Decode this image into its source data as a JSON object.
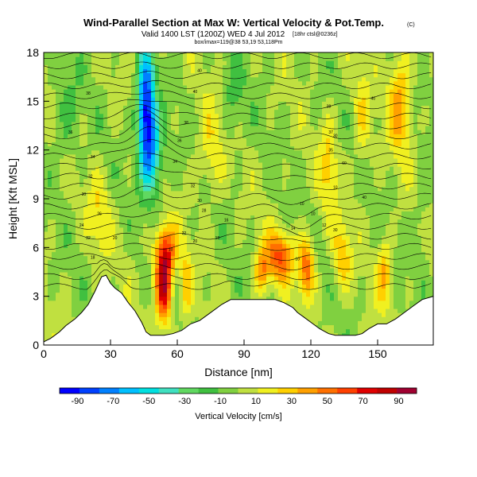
{
  "chart_data": {
    "type": "heatmap",
    "title": "Wind-Parallel Section at Max W: Vertical Velocity & Pot.Temp.",
    "title_mark": "(C)",
    "subtitle": "Valid 1400 LST (1200Z) WED 4 Jul 2012",
    "subtitle_small": "(1200Z)",
    "subtitle_extra": "[18hr ctsl@0236z]",
    "caption_small": "box/imax=119@38 53,19 53,118Pm",
    "xlabel": "Distance [nm]",
    "ylabel": "Height [Kft MSL]",
    "xlim": [
      0,
      175
    ],
    "ylim": [
      0,
      18
    ],
    "x_ticks": [
      0,
      30,
      60,
      90,
      120,
      150
    ],
    "y_ticks": [
      0,
      3,
      6,
      9,
      12,
      15,
      18
    ],
    "colorbar": {
      "label": "Vertical Velocity [cm/s]",
      "range": [
        -100,
        100
      ],
      "tick_values": [
        -90,
        -70,
        -50,
        -30,
        -10,
        10,
        30,
        50,
        70,
        90
      ],
      "colors": [
        "#0000ff",
        "#0040ff",
        "#0080ff",
        "#00c0ff",
        "#00e0e0",
        "#40e0c0",
        "#60d860",
        "#40c040",
        "#80d040",
        "#c0e040",
        "#f0f020",
        "#ffd000",
        "#ffa000",
        "#ff7000",
        "#ff4000",
        "#e00000",
        "#c00000",
        "#a00030"
      ]
    },
    "terrain_profile": {
      "x": [
        0,
        3,
        7,
        10,
        14,
        17,
        20,
        23,
        26,
        28,
        30,
        32,
        35,
        38,
        41,
        44,
        46,
        48,
        50,
        54,
        58,
        62,
        64,
        66,
        70,
        74,
        78,
        80,
        84,
        88,
        92,
        96,
        100,
        104,
        108,
        112,
        114,
        117,
        120,
        124,
        128,
        131,
        134,
        137,
        140,
        143,
        146,
        150,
        154,
        158,
        162,
        166,
        170,
        175
      ],
      "height": [
        0.2,
        0.4,
        0.8,
        1.2,
        1.6,
        2.0,
        2.5,
        3.3,
        4.2,
        4.3,
        3.8,
        3.5,
        3.2,
        2.6,
        2.1,
        1.4,
        0.8,
        0.6,
        0.6,
        0.6,
        0.7,
        0.9,
        1.1,
        1.3,
        1.5,
        1.9,
        2.3,
        2.5,
        2.8,
        2.8,
        2.8,
        2.8,
        2.8,
        2.8,
        2.6,
        2.3,
        2.0,
        1.7,
        1.4,
        1.0,
        0.7,
        0.6,
        0.6,
        0.6,
        0.6,
        0.7,
        1.0,
        1.3,
        1.3,
        1.6,
        2.0,
        2.4,
        2.8,
        3.0
      ]
    },
    "w_features": [
      {
        "x": 46,
        "z": 14.5,
        "sx": 4,
        "sz": 3.5,
        "w": -95
      },
      {
        "x": 49,
        "z": 11.5,
        "sx": 5,
        "sz": 2.5,
        "w": -45
      },
      {
        "x": 54,
        "z": 3.8,
        "sx": 3.5,
        "sz": 2.2,
        "w": 95
      },
      {
        "x": 55,
        "z": 6.0,
        "sx": 6,
        "sz": 1.5,
        "w": 40
      },
      {
        "x": 64,
        "z": 3.5,
        "sx": 2.5,
        "sz": 2.0,
        "w": 30
      },
      {
        "x": 98,
        "z": 4.5,
        "sx": 3,
        "sz": 1.5,
        "w": 40
      },
      {
        "x": 106,
        "z": 5.5,
        "sx": 6,
        "sz": 1.5,
        "w": 55
      },
      {
        "x": 118,
        "z": 4.8,
        "sx": 3.5,
        "sz": 1.8,
        "w": 55
      },
      {
        "x": 134,
        "z": 5.5,
        "sx": 4,
        "sz": 2.0,
        "w": 30
      },
      {
        "x": 153,
        "z": 4.5,
        "sx": 3,
        "sz": 2.0,
        "w": 35
      },
      {
        "x": 160,
        "z": 15.0,
        "sx": 5,
        "sz": 3.0,
        "w": 40
      },
      {
        "x": 143,
        "z": 14.0,
        "sx": 4,
        "sz": 3.0,
        "w": 20
      },
      {
        "x": 10,
        "z": 14.0,
        "sx": 6,
        "sz": 3.0,
        "w": -15
      },
      {
        "x": 25,
        "z": 8.0,
        "sx": 5,
        "sz": 2.5,
        "w": 20
      },
      {
        "x": 75,
        "z": 12.0,
        "sx": 6,
        "sz": 3.0,
        "w": 20
      },
      {
        "x": 85,
        "z": 15.0,
        "sx": 5,
        "sz": 3.0,
        "w": -15
      },
      {
        "x": 128,
        "z": 11.0,
        "sx": 4,
        "sz": 3.0,
        "w": 25
      },
      {
        "x": 170,
        "z": 8.0,
        "sx": 4,
        "sz": 3.0,
        "w": -10
      }
    ],
    "theta_isentropes": {
      "count": 24,
      "labels": [
        {
          "x": 70,
          "z": 16.8,
          "text": "40"
        },
        {
          "x": 68,
          "z": 15.5,
          "text": "40"
        },
        {
          "x": 20,
          "z": 15.4,
          "text": "38"
        },
        {
          "x": 12,
          "z": 13.0,
          "text": "36"
        },
        {
          "x": 22,
          "z": 11.5,
          "text": "34"
        },
        {
          "x": 64,
          "z": 13.6,
          "text": "38"
        },
        {
          "x": 61,
          "z": 12.5,
          "text": "36"
        },
        {
          "x": 59,
          "z": 11.2,
          "text": "34"
        },
        {
          "x": 21,
          "z": 10.3,
          "text": "32"
        },
        {
          "x": 18,
          "z": 9.2,
          "text": "30"
        },
        {
          "x": 67,
          "z": 9.7,
          "text": "32"
        },
        {
          "x": 70,
          "z": 8.8,
          "text": "30"
        },
        {
          "x": 72,
          "z": 8.2,
          "text": "28"
        },
        {
          "x": 25,
          "z": 8.0,
          "text": "26"
        },
        {
          "x": 17,
          "z": 7.3,
          "text": "24"
        },
        {
          "x": 20,
          "z": 6.5,
          "text": "22"
        },
        {
          "x": 32,
          "z": 6.5,
          "text": "20"
        },
        {
          "x": 22,
          "z": 5.3,
          "text": "18"
        },
        {
          "x": 63,
          "z": 6.8,
          "text": "22"
        },
        {
          "x": 68,
          "z": 6.3,
          "text": "20"
        },
        {
          "x": 78,
          "z": 6.5,
          "text": "18"
        },
        {
          "x": 82,
          "z": 7.6,
          "text": "16"
        },
        {
          "x": 112,
          "z": 7.1,
          "text": "14"
        },
        {
          "x": 126,
          "z": 7.3,
          "text": "12"
        },
        {
          "x": 121,
          "z": 8.0,
          "text": "10"
        },
        {
          "x": 116,
          "z": 8.6,
          "text": "10"
        },
        {
          "x": 131,
          "z": 9.6,
          "text": "10"
        },
        {
          "x": 131,
          "z": 7.0,
          "text": "30"
        },
        {
          "x": 57,
          "z": 5.8,
          "text": "10"
        },
        {
          "x": 114,
          "z": 5.2,
          "text": "10"
        },
        {
          "x": 144,
          "z": 9.0,
          "text": "40"
        },
        {
          "x": 135,
          "z": 11.1,
          "text": "60"
        },
        {
          "x": 129,
          "z": 11.9,
          "text": "35"
        },
        {
          "x": 131,
          "z": 12.8,
          "text": "30"
        },
        {
          "x": 129,
          "z": 13.0,
          "text": "37"
        },
        {
          "x": 128,
          "z": 14.6,
          "text": "38"
        },
        {
          "x": 148,
          "z": 15.1,
          "text": "40"
        }
      ]
    }
  }
}
